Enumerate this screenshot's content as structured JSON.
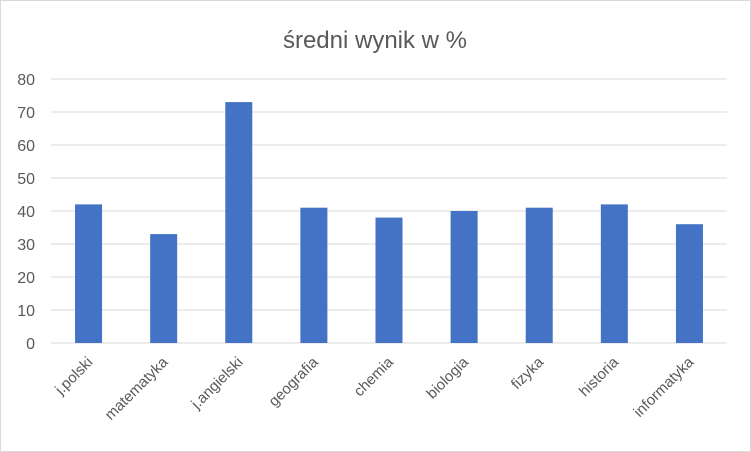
{
  "chart_data": {
    "type": "bar",
    "title": "średni wynik w %",
    "categories": [
      "j.polski",
      "matematyka",
      "j.angielski",
      "geografia",
      "chemia",
      "biologia",
      "fizyka",
      "historia",
      "informatyka"
    ],
    "values": [
      42,
      33,
      73,
      41,
      38,
      40,
      41,
      42,
      36
    ],
    "ylim": [
      0,
      80
    ],
    "yticks": [
      0,
      10,
      20,
      30,
      40,
      50,
      60,
      70,
      80
    ],
    "grid": true,
    "legend": "none",
    "bar_color": "#4472c4"
  }
}
